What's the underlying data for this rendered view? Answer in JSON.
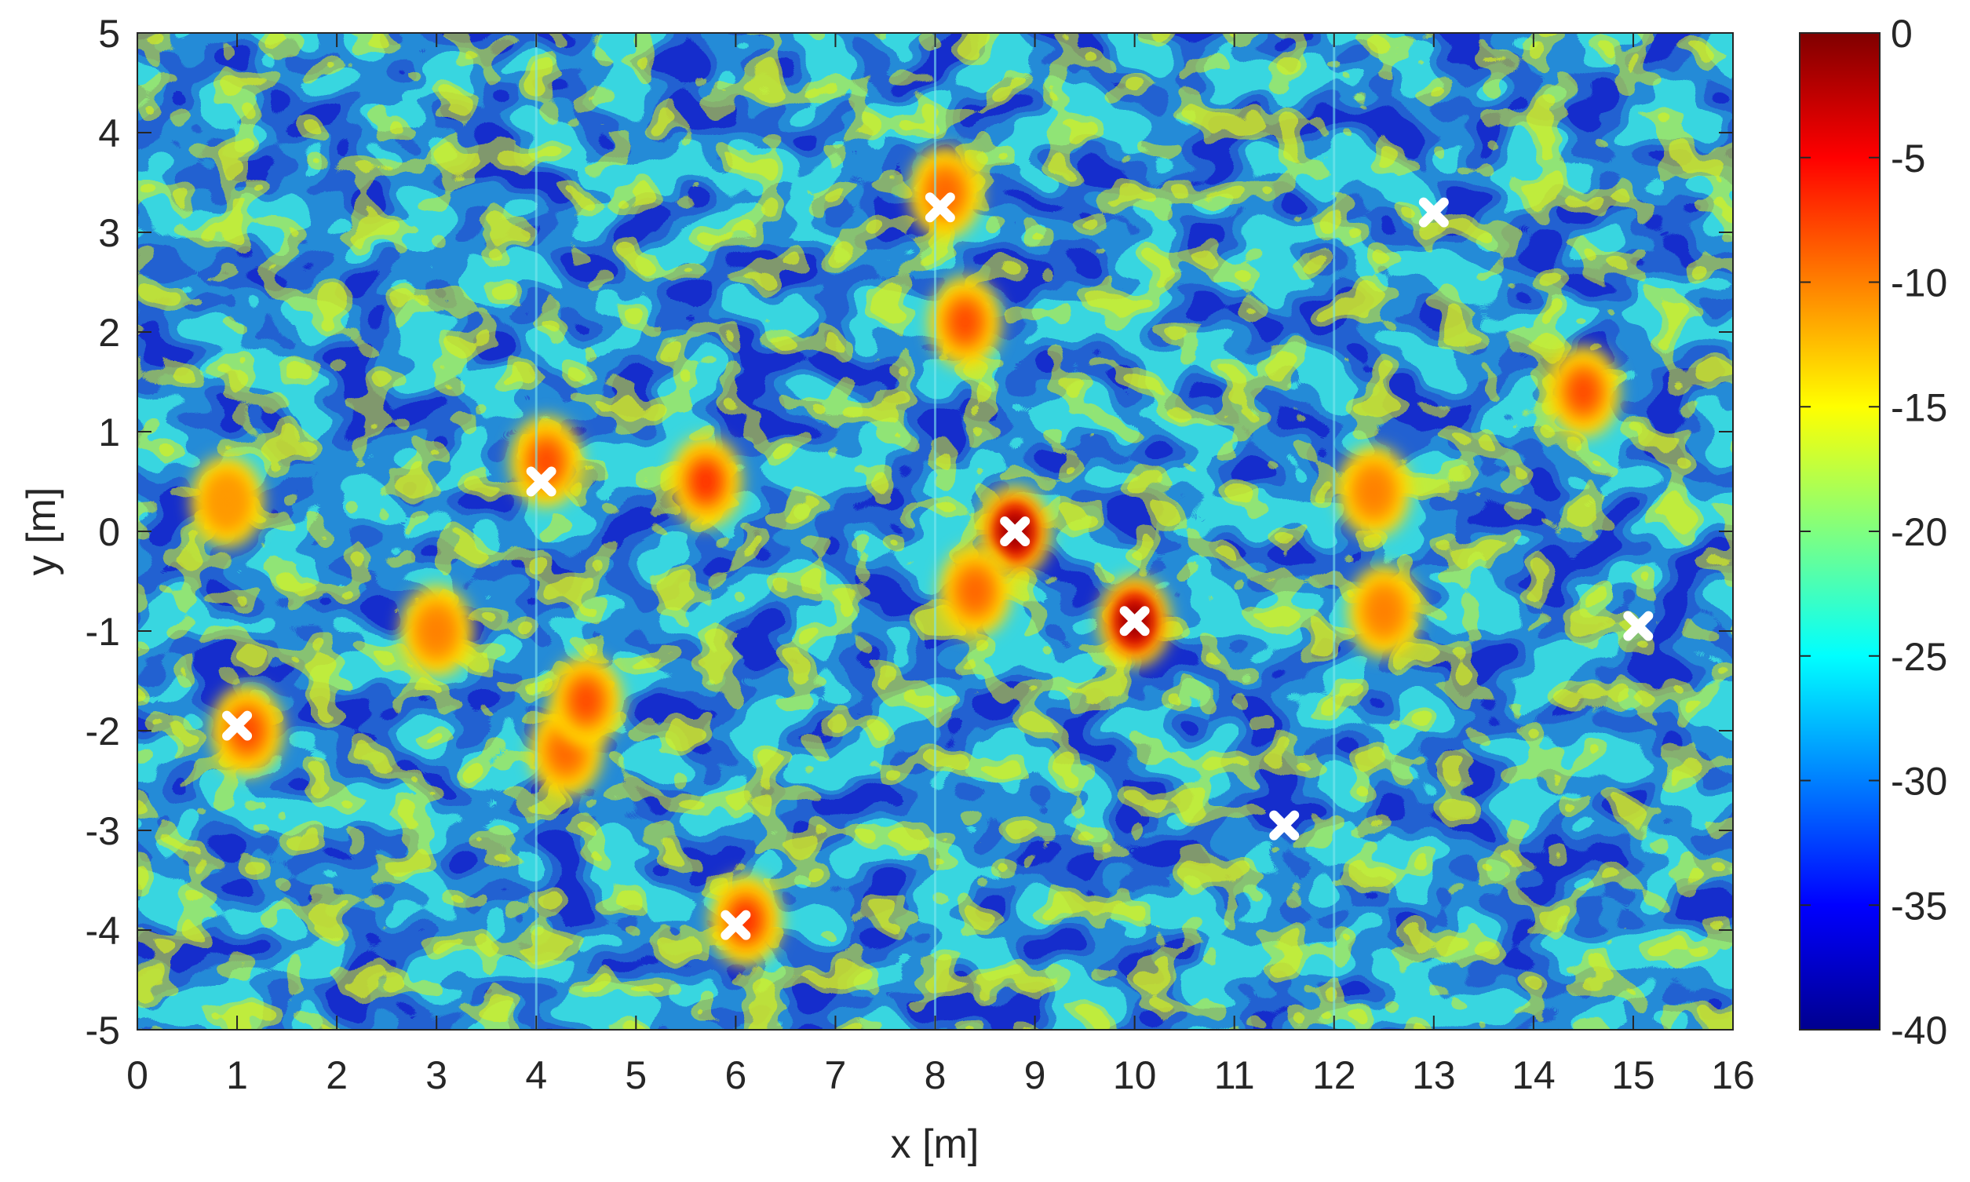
{
  "chart_data": {
    "type": "heatmap",
    "title": "",
    "xlabel": "x [m]",
    "ylabel": "y [m]",
    "xlim": [
      0,
      16
    ],
    "ylim": [
      -5,
      5
    ],
    "x_ticks": [
      "0",
      "1",
      "2",
      "3",
      "4",
      "5",
      "6",
      "7",
      "8",
      "9",
      "10",
      "11",
      "12",
      "13",
      "14",
      "15",
      "16"
    ],
    "y_ticks": [
      "5",
      "4",
      "3",
      "2",
      "1",
      "0",
      "-1",
      "-2",
      "-3",
      "-4",
      "-5"
    ],
    "colormap": "jet",
    "colorbar": {
      "range": [
        -40,
        0
      ],
      "ticks": [
        "0",
        "-5",
        "-10",
        "-15",
        "-20",
        "-25",
        "-30",
        "-35",
        "-40"
      ]
    },
    "panel_boundaries_x": [
      4,
      8,
      12
    ],
    "hotspots": [
      {
        "x": 8.8,
        "y": 0.0,
        "level": -1
      },
      {
        "x": 10.0,
        "y": -0.9,
        "level": -1
      },
      {
        "x": 5.7,
        "y": 0.5,
        "level": -7
      },
      {
        "x": 8.3,
        "y": 2.1,
        "level": -8
      },
      {
        "x": 8.1,
        "y": 3.4,
        "level": -9
      },
      {
        "x": 6.1,
        "y": -3.9,
        "level": -7
      },
      {
        "x": 1.1,
        "y": -2.0,
        "level": -8
      },
      {
        "x": 4.3,
        "y": -2.2,
        "level": -9
      },
      {
        "x": 4.5,
        "y": -1.7,
        "level": -8
      },
      {
        "x": 14.5,
        "y": 1.4,
        "level": -8
      },
      {
        "x": 12.4,
        "y": 0.4,
        "level": -10
      },
      {
        "x": 12.5,
        "y": -0.8,
        "level": -10
      },
      {
        "x": 8.4,
        "y": -0.6,
        "level": -9
      },
      {
        "x": 3.0,
        "y": -1.0,
        "level": -10
      },
      {
        "x": 0.9,
        "y": 0.3,
        "level": -11
      },
      {
        "x": 4.1,
        "y": 0.7,
        "level": -8
      }
    ],
    "markers": [
      {
        "x": 1.0,
        "y": -1.95
      },
      {
        "x": 4.05,
        "y": 0.5
      },
      {
        "x": 6.0,
        "y": -3.95
      },
      {
        "x": 8.05,
        "y": 3.25
      },
      {
        "x": 8.8,
        "y": 0.0
      },
      {
        "x": 10.0,
        "y": -0.9
      },
      {
        "x": 11.5,
        "y": -2.95
      },
      {
        "x": 13.0,
        "y": 3.2
      },
      {
        "x": 15.05,
        "y": -0.95
      }
    ],
    "marker_color": "#ffffff"
  }
}
